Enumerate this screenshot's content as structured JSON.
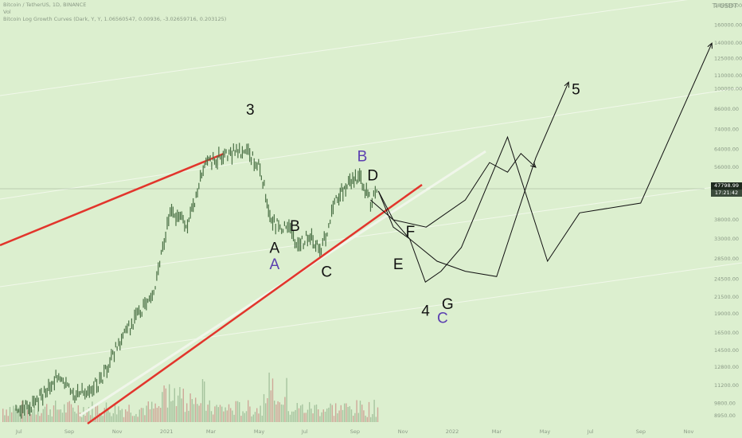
{
  "header": {
    "symbol_line": "Bitcoin / TetherUS, 1D, BINANCE",
    "vol_line": "Vol",
    "indicator_line": "Bitcoin Log Growth Curves (Dark, Y, Y, 1.06560547, 0.00936, -3.02659716, 0.203125)"
  },
  "top_right_label": "Ti USDT",
  "price_tag": {
    "price": "47798.99",
    "countdown": "17:21:42"
  },
  "colors": {
    "background": "#dcefcf",
    "candle": "#4a7045",
    "trendline": "#e2352c",
    "curve": "#f0f6ea",
    "ink": "#111111",
    "wave_purple": "#5b3fb0"
  },
  "chart_data": {
    "type": "line",
    "title": "",
    "scale": "log",
    "y_tick_labels": [
      "185000.00",
      "160000.00",
      "140000.00",
      "125000.00",
      "110000.00",
      "100000.00",
      "86000.00",
      "74000.00",
      "64000.00",
      "56000.00",
      "38000.00",
      "33000.00",
      "28500.00",
      "24500.00",
      "21500.00",
      "19000.00",
      "16500.00",
      "14500.00",
      "12800.00",
      "11200.00",
      "9800.00",
      "8950.00"
    ],
    "x_tick_labels": [
      "Jul",
      "Sep",
      "Nov",
      "2021",
      "Mar",
      "May",
      "Jul",
      "Sep",
      "Nov",
      "2022",
      "Mar",
      "May",
      "Jul",
      "Sep",
      "Nov"
    ],
    "price_series": {
      "name": "",
      "x": [
        "2020-06-25",
        "2020-07-20",
        "2020-08-15",
        "2020-09-10",
        "2020-10-10",
        "2020-11-05",
        "2020-12-01",
        "2020-12-20",
        "2021-01-08",
        "2021-02-01",
        "2021-02-21",
        "2021-03-13",
        "2021-04-14",
        "2021-05-01",
        "2021-05-19",
        "2021-06-05",
        "2021-06-22",
        "2021-07-06",
        "2021-07-20",
        "2021-08-08",
        "2021-08-22",
        "2021-09-07",
        "2021-09-21",
        "2021-10-01"
      ],
      "y": [
        9200,
        9800,
        11800,
        10400,
        11400,
        15500,
        19200,
        23500,
        40000,
        37000,
        57000,
        61000,
        63500,
        57000,
        37000,
        36000,
        31500,
        34000,
        30000,
        44000,
        49500,
        52000,
        43000,
        47000
      ]
    },
    "projections": [
      {
        "name": "",
        "x": [
          "2021-10-01",
          "2021-10-20",
          "2021-11-10",
          "2021-12-15",
          "2022-01-20",
          "2022-03-01",
          "2022-04-20",
          "2022-06-01"
        ],
        "y": [
          47000,
          36000,
          33000,
          28000,
          26000,
          25000,
          60000,
          105000
        ]
      },
      {
        "name": "",
        "x": [
          "2021-10-01",
          "2021-10-20",
          "2021-11-10",
          "2021-11-30",
          "2021-12-20",
          "2022-01-15",
          "2022-03-15",
          "2022-05-05",
          "2022-06-15",
          "2022-09-01",
          "2022-12-01"
        ],
        "y": [
          47000,
          38000,
          33000,
          24000,
          26000,
          31000,
          70000,
          28000,
          40000,
          43000,
          140000
        ]
      },
      {
        "name": "",
        "x": [
          "2021-09-21",
          "2021-10-20",
          "2021-12-01",
          "2022-01-20",
          "2022-02-20",
          "2022-03-15",
          "2022-04-01",
          "2022-04-20"
        ],
        "y": [
          44000,
          38000,
          36000,
          44000,
          58000,
          54000,
          62000,
          56000
        ]
      }
    ],
    "annotations": [
      {
        "text": "3",
        "x": "2021-04-20",
        "y": 86000,
        "color": "ink"
      },
      {
        "text": "B",
        "x": "2021-06-15",
        "y": 36500,
        "color": "ink"
      },
      {
        "text": "A",
        "x": "2021-05-20",
        "y": 31000,
        "color": "ink"
      },
      {
        "text": "A",
        "x": "2021-05-20",
        "y": 27500,
        "color": "wave_purple"
      },
      {
        "text": "C",
        "x": "2021-07-25",
        "y": 26000,
        "color": "ink"
      },
      {
        "text": "B",
        "x": "2021-09-09",
        "y": 61000,
        "color": "wave_purple"
      },
      {
        "text": "D",
        "x": "2021-09-22",
        "y": 53000,
        "color": "ink"
      },
      {
        "text": "F",
        "x": "2021-11-10",
        "y": 35000,
        "color": "ink"
      },
      {
        "text": "E",
        "x": "2021-10-25",
        "y": 27500,
        "color": "ink"
      },
      {
        "text": "4",
        "x": "2021-11-30",
        "y": 19500,
        "color": "ink"
      },
      {
        "text": "C",
        "x": "2021-12-20",
        "y": 18500,
        "color": "wave_purple"
      },
      {
        "text": "G",
        "x": "2021-12-26",
        "y": 20500,
        "color": "ink"
      },
      {
        "text": "5",
        "x": "2022-06-10",
        "y": 100000,
        "color": "ink"
      }
    ]
  }
}
